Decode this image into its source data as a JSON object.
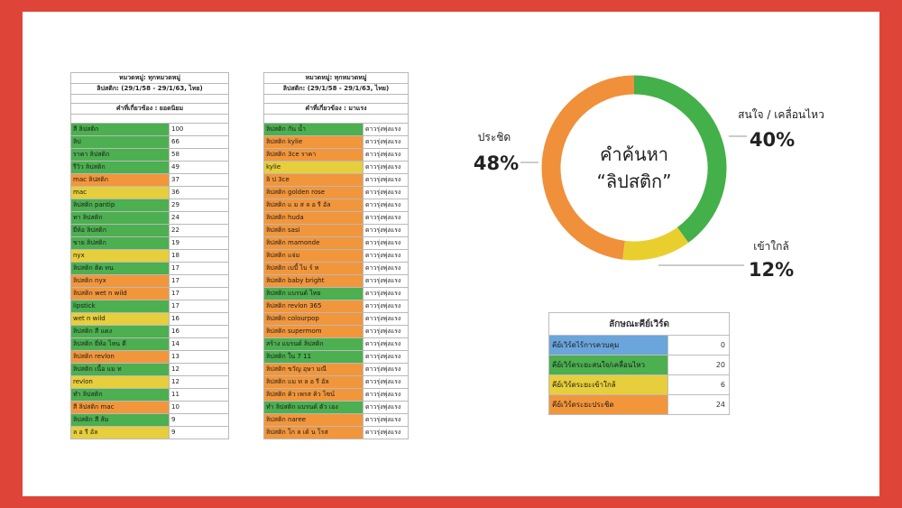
{
  "table1": {
    "header1": "หมวดหมู่: ทุกหมวดหมู่",
    "header2": "ลิปสติก: (29/1/58 - 29/1/63, ไทย)",
    "subheader": "คำที่เกี่ยวข้อง : ยอดนิยม",
    "rows": [
      {
        "term": "สี ลิปสติก",
        "value": "100",
        "color": "g"
      },
      {
        "term": "ลิป",
        "value": "66",
        "color": "g"
      },
      {
        "term": "ราคา ลิปสติก",
        "value": "58",
        "color": "g"
      },
      {
        "term": "รีวิว ลิปสติก",
        "value": "49",
        "color": "g"
      },
      {
        "term": "mac ลิปสติก",
        "value": "37",
        "color": "o"
      },
      {
        "term": "mac",
        "value": "36",
        "color": "y"
      },
      {
        "term": "ลิปสติก pantip",
        "value": "29",
        "color": "g"
      },
      {
        "term": "ทา ลิปสติก",
        "value": "24",
        "color": "g"
      },
      {
        "term": "ยี่ห้อ ลิปสติก",
        "value": "22",
        "color": "g"
      },
      {
        "term": "ขาย ลิปสติก",
        "value": "19",
        "color": "g"
      },
      {
        "term": "nyx",
        "value": "18",
        "color": "y"
      },
      {
        "term": "ลิปสติก ติด ทน",
        "value": "17",
        "color": "g"
      },
      {
        "term": "ลิปสติก nyx",
        "value": "17",
        "color": "o"
      },
      {
        "term": "ลิปสติก wet n wild",
        "value": "17",
        "color": "o"
      },
      {
        "term": "lipstick",
        "value": "17",
        "color": "g"
      },
      {
        "term": "wet n wild",
        "value": "16",
        "color": "y"
      },
      {
        "term": "ลิปสติก สี แดง",
        "value": "16",
        "color": "g"
      },
      {
        "term": "ลิปสติก ยี่ห้อ ไหน ดี",
        "value": "14",
        "color": "g"
      },
      {
        "term": "ลิปสติก revlon",
        "value": "13",
        "color": "o"
      },
      {
        "term": "ลิปสติก เนื้อ แม ท",
        "value": "12",
        "color": "g"
      },
      {
        "term": "revlon",
        "value": "12",
        "color": "y"
      },
      {
        "term": "ทำ ลิปสติก",
        "value": "11",
        "color": "g"
      },
      {
        "term": "สี ลิปสติก mac",
        "value": "10",
        "color": "o"
      },
      {
        "term": "ลิปสติก สี ส้ม",
        "value": "9",
        "color": "g"
      },
      {
        "term": "ล อ รี อัล",
        "value": "9",
        "color": "y"
      }
    ]
  },
  "table2": {
    "header1": "หมวดหมู่: ทุกหมวดหมู่",
    "header2": "ลิปสติก: (29/1/58 - 29/1/63, ไทย)",
    "subheader": "คำที่เกี่ยวข้อง : มาแรง",
    "rows": [
      {
        "term": "ลิปสติก กัน น้ำ",
        "value": "ดาวรุ่งพุ่งแรง",
        "color": "g"
      },
      {
        "term": "ลิปสติก kylie",
        "value": "ดาวรุ่งพุ่งแรง",
        "color": "o"
      },
      {
        "term": "ลิปสติก 3ce ราคา",
        "value": "ดาวรุ่งพุ่งแรง",
        "color": "o"
      },
      {
        "term": "kylie",
        "value": "ดาวรุ่งพุ่งแรง",
        "color": "y"
      },
      {
        "term": "ลิ ป 3ce",
        "value": "ดาวรุ่งพุ่งแรง",
        "color": "o"
      },
      {
        "term": "ลิปสติก golden rose",
        "value": "ดาวรุ่งพุ่งแรง",
        "color": "o"
      },
      {
        "term": "ลิปสติก แ ม ส ล อ รี อัล",
        "value": "ดาวรุ่งพุ่งแรง",
        "color": "o"
      },
      {
        "term": "ลิปสติก huda",
        "value": "ดาวรุ่งพุ่งแรง",
        "color": "o"
      },
      {
        "term": "ลิปสติก sasi",
        "value": "ดาวรุ่งพุ่งแรง",
        "color": "o"
      },
      {
        "term": "ลิปสติก mamonde",
        "value": "ดาวรุ่งพุ่งแรง",
        "color": "o"
      },
      {
        "term": "ลิปสติก แจ่ม",
        "value": "ดาวรุ่งพุ่งแรง",
        "color": "o"
      },
      {
        "term": "ลิปสติก เบบี้ ไบ ร์ ท",
        "value": "ดาวรุ่งพุ่งแรง",
        "color": "o"
      },
      {
        "term": "ลิปสติก baby bright",
        "value": "ดาวรุ่งพุ่งแรง",
        "color": "o"
      },
      {
        "term": "ลิปสติก แบรนด์ ไทย",
        "value": "ดาวรุ่งพุ่งแรง",
        "color": "g"
      },
      {
        "term": "ลิปสติก revlon 365",
        "value": "ดาวรุ่งพุ่งแรง",
        "color": "o"
      },
      {
        "term": "ลิปสติก colourpop",
        "value": "ดาวรุ่งพุ่งแรง",
        "color": "o"
      },
      {
        "term": "ลิปสติก supermom",
        "value": "ดาวรุ่งพุ่งแรง",
        "color": "o"
      },
      {
        "term": "สร้าง แบรนด์ ลิปสติก",
        "value": "ดาวรุ่งพุ่งแรง",
        "color": "g"
      },
      {
        "term": "ลิปสติก ใน 7 11",
        "value": "ดาวรุ่งพุ่งแรง",
        "color": "g"
      },
      {
        "term": "ลิปสติก ขวัญ อุษา มณี",
        "value": "ดาวรุ่งพุ่งแรง",
        "color": "o"
      },
      {
        "term": "ลิปสติก แม ท ล อ รี อัล",
        "value": "ดาวรุ่งพุ่งแรง",
        "color": "o"
      },
      {
        "term": "ลิปสติก คิว เพรส คิว ไซน์",
        "value": "ดาวรุ่งพุ่งแรง",
        "color": "o"
      },
      {
        "term": "ทำ ลิปสติก แบรนด์ ตัว เอง",
        "value": "ดาวรุ่งพุ่งแรง",
        "color": "g"
      },
      {
        "term": "ลิปสติก naree",
        "value": "ดาวรุ่งพุ่งแรง",
        "color": "o"
      },
      {
        "term": "ลิปสติก โก ล เด้ น โรส",
        "value": "ดาวรุ่งพุ่งแรง",
        "color": "o"
      }
    ]
  },
  "chart_data": {
    "type": "pie",
    "center_label_line1": "คำค้นหา",
    "center_label_line2": "“ลิปสติก”",
    "slices": [
      {
        "label": "สนใจ / เคลื่อนไหว",
        "value": 40,
        "display": "40%",
        "color": "#43b04a"
      },
      {
        "label": "เข้าใกล้",
        "value": 12,
        "display": "12%",
        "color": "#e9cf2e"
      },
      {
        "label": "ประชิด",
        "value": 48,
        "display": "48%",
        "color": "#f0903a"
      }
    ]
  },
  "legend_table": {
    "title": "ลักษณะคีย์เวิร์ด",
    "rows": [
      {
        "label": "คีย์เวิร์ดไร้การควบคุม",
        "value": "0",
        "color": "b"
      },
      {
        "label": "คีย์เวิร์ดระยะสนใจ/เคลื่อนไหว",
        "value": "20",
        "color": "g"
      },
      {
        "label": "คีย์เวิร์ดระยะเข้าใกล้",
        "value": "6",
        "color": "y"
      },
      {
        "label": "คีย์เวิร์ดระยะประชิด",
        "value": "24",
        "color": "o"
      }
    ]
  }
}
